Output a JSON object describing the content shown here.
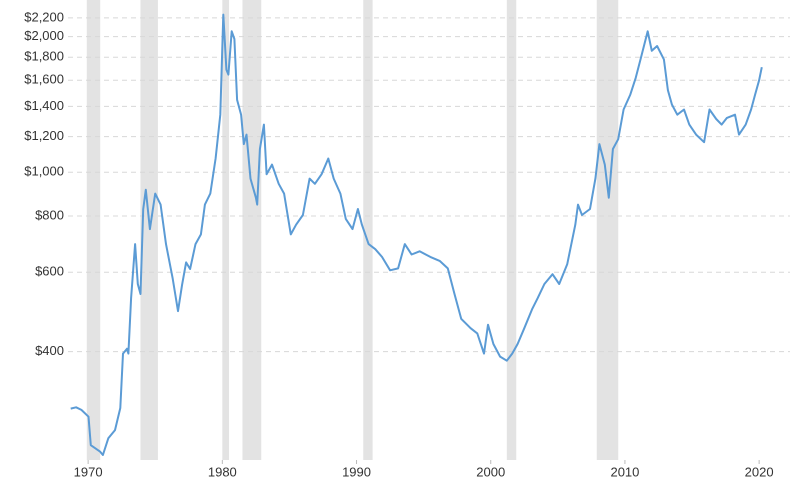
{
  "chart_data": {
    "type": "line",
    "yscale": "log",
    "grid": true,
    "xlim": [
      1968.5,
      2022.3
    ],
    "xticks": [
      1970,
      1980,
      1990,
      2000,
      2010,
      2020
    ],
    "ylim": [
      230,
      2350
    ],
    "yticks": [
      {
        "value": 400,
        "label": "$400"
      },
      {
        "value": 600,
        "label": "$600"
      },
      {
        "value": 800,
        "label": "$800"
      },
      {
        "value": 1000,
        "label": "$1,000"
      },
      {
        "value": 1200,
        "label": "$1,200"
      },
      {
        "value": 1400,
        "label": "$1,400"
      },
      {
        "value": 1600,
        "label": "$1,600"
      },
      {
        "value": 1800,
        "label": "$1,800"
      },
      {
        "value": 2000,
        "label": "$2,000"
      },
      {
        "value": 2200,
        "label": "$2,200"
      }
    ],
    "shading_color": "#e3e3e3",
    "shaded_periods": [
      [
        1969.9,
        1970.9
      ],
      [
        1973.9,
        1975.2
      ],
      [
        1980.0,
        1980.5
      ],
      [
        1981.5,
        1982.9
      ],
      [
        1990.5,
        1991.2
      ],
      [
        2001.2,
        2001.9
      ],
      [
        2007.9,
        2009.5
      ]
    ],
    "series": [
      {
        "color": "#5b9bd5",
        "x": [
          1968.7,
          1969.1,
          1969.5,
          1970.03,
          1970.2,
          1970.9,
          1971.1,
          1971.5,
          1972.0,
          1972.4,
          1972.6,
          1972.9,
          1973.0,
          1973.2,
          1973.5,
          1973.7,
          1973.9,
          1974.1,
          1974.3,
          1974.6,
          1975.0,
          1975.4,
          1975.8,
          1976.3,
          1976.7,
          1977.0,
          1977.3,
          1977.6,
          1978.0,
          1978.4,
          1978.7,
          1979.1,
          1979.5,
          1979.85,
          1980.07,
          1980.3,
          1980.45,
          1980.7,
          1980.9,
          1981.1,
          1981.4,
          1981.6,
          1981.8,
          1982.1,
          1982.5,
          1982.6,
          1982.8,
          1983.1,
          1983.3,
          1983.7,
          1984.2,
          1984.6,
          1985.1,
          1985.5,
          1986.0,
          1986.5,
          1986.9,
          1987.4,
          1987.9,
          1988.3,
          1988.8,
          1989.2,
          1989.7,
          1990.1,
          1990.4,
          1990.9,
          1991.4,
          1991.9,
          1992.5,
          1993.1,
          1993.6,
          1994.1,
          1994.7,
          1995.5,
          1996.2,
          1996.8,
          1997.3,
          1997.8,
          1998.5,
          1999.0,
          1999.5,
          1999.8,
          2000.2,
          2000.7,
          2001.2,
          2001.6,
          2002.0,
          2002.5,
          2003.1,
          2003.5,
          2004.0,
          2004.6,
          2005.1,
          2005.7,
          2006.3,
          2006.5,
          2006.8,
          2007.4,
          2007.8,
          2008.1,
          2008.5,
          2008.8,
          2009.1,
          2009.5,
          2009.9,
          2010.4,
          2010.8,
          2011.2,
          2011.7,
          2012.0,
          2012.4,
          2012.9,
          2013.2,
          2013.5,
          2013.9,
          2014.4,
          2014.8,
          2015.3,
          2015.9,
          2016.3,
          2016.8,
          2017.2,
          2017.6,
          2018.2,
          2018.5,
          2019.0,
          2019.4,
          2019.7,
          2020.0,
          2020.2
        ],
        "values": [
          299,
          301,
          297,
          287,
          248,
          240,
          236,
          257,
          268,
          300,
          396,
          406,
          396,
          526,
          693,
          565,
          537,
          828,
          915,
          748,
          897,
          848,
          693,
          581,
          492,
          563,
          631,
          610,
          693,
          728,
          848,
          897,
          1073,
          1342,
          2237,
          1689,
          1647,
          2055,
          1975,
          1447,
          1342,
          1155,
          1212,
          968,
          878,
          848,
          1126,
          1276,
          990,
          1040,
          943,
          897,
          728,
          765,
          804,
          968,
          943,
          990,
          1073,
          968,
          897,
          788,
          748,
          829,
          765,
          693,
          675,
          649,
          606,
          612,
          693,
          657,
          668,
          649,
          636,
          612,
          537,
          473,
          451,
          439,
          396,
          459,
          416,
          390,
          382,
          396,
          416,
          451,
          498,
          526,
          565,
          594,
          565,
          625,
          765,
          848,
          804,
          829,
          968,
          1155,
          1040,
          878,
          1126,
          1184,
          1378,
          1487,
          1619,
          1797,
          2055,
          1860,
          1906,
          1780,
          1521,
          1414,
          1342,
          1378,
          1276,
          1212,
          1166,
          1378,
          1313,
          1276,
          1320,
          1342,
          1212,
          1276,
          1378,
          1487,
          1600,
          1710
        ]
      }
    ]
  }
}
